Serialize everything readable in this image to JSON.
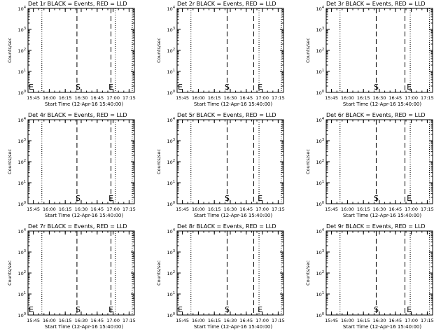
{
  "chart_data": [
    {
      "type": "line",
      "title": "Det 1r BLACK = Events, RED = LLD",
      "xlabel": "Start Time (12-Apr-16 15:40:00)",
      "ylabel": "Counts/sec",
      "y_log": true,
      "ylim": [
        1,
        10000
      ],
      "x_tick_labels": [
        "15:45",
        "16:00",
        "16:15",
        "16:30",
        "16:45",
        "17:00",
        "17:15"
      ],
      "x_range_minutes": [
        0,
        100
      ],
      "markers": [
        {
          "label": "E",
          "x_minutes": 0
        },
        {
          "label": "S",
          "x_minutes": 47
        },
        {
          "label": "E",
          "x_minutes": 78
        }
      ],
      "dashed_lines_minutes": [
        46,
        78
      ],
      "dotted_lines_minutes": [
        13,
        82,
        98
      ],
      "series": []
    },
    {
      "type": "line",
      "title": "Det 2r BLACK = Events, RED = LLD",
      "xlabel": "Start Time (12-Apr-16 15:40:00)",
      "ylabel": "Counts/sec",
      "y_log": true,
      "ylim": [
        1,
        10000
      ],
      "x_tick_labels": [
        "15:45",
        "16:00",
        "16:15",
        "16:30",
        "16:45",
        "17:00",
        "17:15"
      ],
      "x_range_minutes": [
        0,
        100
      ],
      "markers": [
        {
          "label": "E",
          "x_minutes": 0
        },
        {
          "label": "S",
          "x_minutes": 47
        },
        {
          "label": "E",
          "x_minutes": 78
        }
      ],
      "dashed_lines_minutes": [
        47,
        72
      ],
      "dotted_lines_minutes": [
        13,
        77,
        98
      ],
      "series": []
    },
    {
      "type": "line",
      "title": "Det 3r BLACK = Events, RED = LLD",
      "xlabel": "Start Time (12-Apr-16 15:40:00)",
      "ylabel": "Counts/sec",
      "y_log": true,
      "ylim": [
        1,
        10000
      ],
      "x_tick_labels": [
        "15:45",
        "16:00",
        "16:15",
        "16:30",
        "16:45",
        "17:00",
        "17:15"
      ],
      "x_range_minutes": [
        0,
        100
      ],
      "markers": [
        {
          "label": "S",
          "x_minutes": 47
        },
        {
          "label": "E",
          "x_minutes": 78
        }
      ],
      "dashed_lines_minutes": [
        47,
        74
      ],
      "dotted_lines_minutes": [
        13,
        79,
        97
      ],
      "series": []
    },
    {
      "type": "line",
      "title": "Det 4r BLACK = Events, RED = LLD",
      "xlabel": "Start Time (12-Apr-16 15:40:00)",
      "ylabel": "Counts/sec",
      "y_log": true,
      "ylim": [
        1,
        10000
      ],
      "x_tick_labels": [
        "15:45",
        "16:00",
        "16:15",
        "16:30",
        "16:45",
        "17:00",
        "17:15"
      ],
      "x_range_minutes": [
        0,
        100
      ],
      "markers": [
        {
          "label": "S",
          "x_minutes": 47
        },
        {
          "label": "E",
          "x_minutes": 78
        }
      ],
      "dashed_lines_minutes": [
        46,
        78
      ],
      "dotted_lines_minutes": [
        13,
        82,
        98
      ],
      "series": []
    },
    {
      "type": "line",
      "title": "Det 5r BLACK = Events, RED = LLD",
      "xlabel": "Start Time (12-Apr-16 15:40:00)",
      "ylabel": "Counts/sec",
      "y_log": true,
      "ylim": [
        1,
        10000
      ],
      "x_tick_labels": [
        "15:45",
        "16:00",
        "16:15",
        "16:30",
        "16:45",
        "17:00",
        "17:15"
      ],
      "x_range_minutes": [
        0,
        100
      ],
      "markers": [
        {
          "label": "S",
          "x_minutes": 47
        },
        {
          "label": "E",
          "x_minutes": 78
        }
      ],
      "dashed_lines_minutes": [
        47,
        72
      ],
      "dotted_lines_minutes": [
        13,
        77,
        98
      ],
      "series": []
    },
    {
      "type": "line",
      "title": "Det 6r BLACK = Events, RED = LLD",
      "xlabel": "Start Time (12-Apr-16 15:40:00)",
      "ylabel": "Counts/sec",
      "y_log": true,
      "ylim": [
        1,
        10000
      ],
      "x_tick_labels": [
        "15:45",
        "16:00",
        "16:15",
        "16:30",
        "16:45",
        "17:00",
        "17:15"
      ],
      "x_range_minutes": [
        0,
        100
      ],
      "markers": [
        {
          "label": "S",
          "x_minutes": 47
        },
        {
          "label": "E",
          "x_minutes": 78
        }
      ],
      "dashed_lines_minutes": [
        47,
        74
      ],
      "dotted_lines_minutes": [
        13,
        79,
        97
      ],
      "series": []
    },
    {
      "type": "line",
      "title": "Det 7r BLACK = Events, RED = LLD",
      "xlabel": "Start Time (12-Apr-16 15:40:00)",
      "ylabel": "Counts/sec",
      "y_log": true,
      "ylim": [
        1,
        10000
      ],
      "x_tick_labels": [
        "15:45",
        "16:00",
        "16:15",
        "16:30",
        "16:45",
        "17:00",
        "17:15"
      ],
      "x_range_minutes": [
        0,
        100
      ],
      "markers": [
        {
          "label": "E",
          "x_minutes": 0
        },
        {
          "label": "S",
          "x_minutes": 47
        },
        {
          "label": "E",
          "x_minutes": 78
        }
      ],
      "dashed_lines_minutes": [
        46,
        78
      ],
      "dotted_lines_minutes": [
        13,
        82,
        98
      ],
      "series": []
    },
    {
      "type": "line",
      "title": "Det 8r BLACK = Events, RED = LLD",
      "xlabel": "Start Time (12-Apr-16 15:40:00)",
      "ylabel": "Counts/sec",
      "y_log": true,
      "ylim": [
        1,
        10000
      ],
      "x_tick_labels": [
        "15:45",
        "16:00",
        "16:15",
        "16:30",
        "16:45",
        "17:00",
        "17:15"
      ],
      "x_range_minutes": [
        0,
        100
      ],
      "markers": [
        {
          "label": "E",
          "x_minutes": 0
        },
        {
          "label": "S",
          "x_minutes": 47
        },
        {
          "label": "E",
          "x_minutes": 78
        }
      ],
      "dashed_lines_minutes": [
        47,
        72
      ],
      "dotted_lines_minutes": [
        13,
        77,
        98
      ],
      "series": []
    },
    {
      "type": "line",
      "title": "Det 9r BLACK = Events, RED = LLD",
      "xlabel": "Start Time (12-Apr-16 15:40:00)",
      "ylabel": "Counts/sec",
      "y_log": true,
      "ylim": [
        1,
        10000
      ],
      "x_tick_labels": [
        "15:45",
        "16:00",
        "16:15",
        "16:30",
        "16:45",
        "17:00",
        "17:15"
      ],
      "x_range_minutes": [
        0,
        100
      ],
      "markers": [
        {
          "label": "S",
          "x_minutes": 47
        },
        {
          "label": "E",
          "x_minutes": 78
        }
      ],
      "dashed_lines_minutes": [
        47,
        74
      ],
      "dotted_lines_minutes": [
        13,
        79,
        97
      ],
      "series": []
    }
  ]
}
